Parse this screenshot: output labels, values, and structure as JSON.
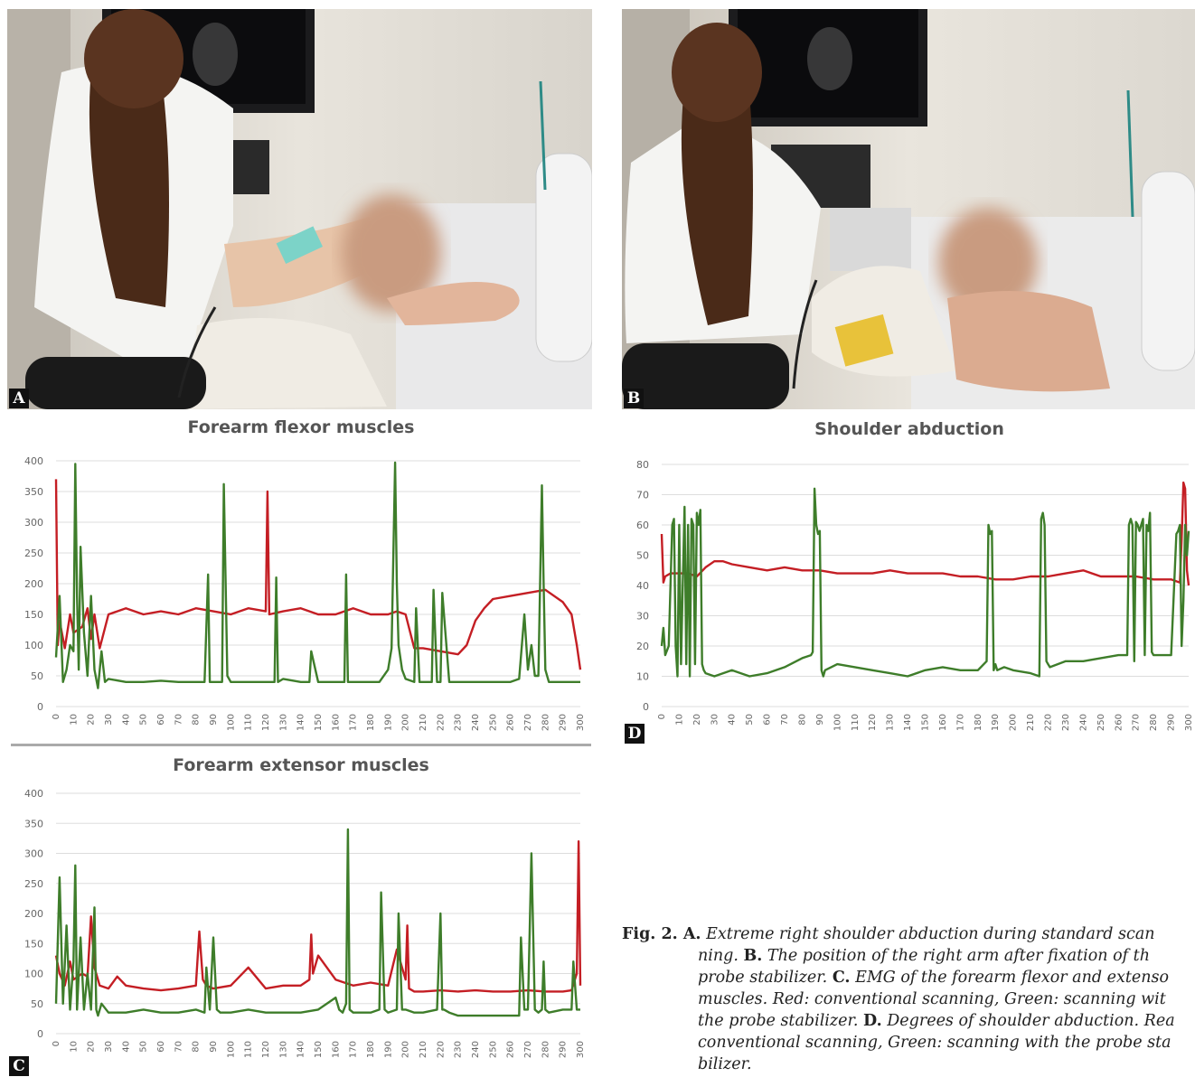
{
  "panels": {
    "a": {
      "letter": "A"
    },
    "b": {
      "letter": "B"
    },
    "c": {
      "letter": "C"
    },
    "d": {
      "letter": "D"
    }
  },
  "colors": {
    "conventional": "#c41e24",
    "stabilizer": "#3e7d2a"
  },
  "chart_data": [
    {
      "id": "flexor",
      "type": "line",
      "title": "Forearm flexor muscles",
      "ylim": [
        0,
        400
      ],
      "yticks": [
        0,
        50,
        100,
        150,
        200,
        250,
        300,
        350,
        400
      ],
      "xlim": [
        0,
        300
      ],
      "xticks": [
        0,
        10,
        20,
        30,
        40,
        50,
        60,
        70,
        80,
        90,
        100,
        110,
        120,
        130,
        140,
        150,
        160,
        170,
        180,
        190,
        200,
        210,
        220,
        230,
        240,
        250,
        260,
        270,
        280,
        290,
        300
      ],
      "grid": true,
      "series": [
        {
          "key": "conventional",
          "x": [
            0,
            1,
            2,
            5,
            8,
            10,
            15,
            18,
            20,
            22,
            25,
            30,
            35,
            40,
            50,
            60,
            70,
            80,
            90,
            100,
            110,
            120,
            121,
            122,
            130,
            140,
            150,
            160,
            170,
            180,
            190,
            195,
            200,
            205,
            210,
            220,
            230,
            235,
            240,
            245,
            250,
            260,
            270,
            280,
            290,
            295,
            298,
            300
          ],
          "y": [
            370,
            100,
            140,
            95,
            150,
            120,
            130,
            160,
            110,
            150,
            95,
            150,
            155,
            160,
            150,
            155,
            150,
            160,
            155,
            150,
            160,
            155,
            350,
            150,
            155,
            160,
            150,
            150,
            160,
            150,
            150,
            155,
            150,
            95,
            95,
            90,
            85,
            100,
            140,
            160,
            175,
            180,
            185,
            190,
            170,
            150,
            100,
            60
          ]
        },
        {
          "key": "stabilizer",
          "x": [
            0,
            2,
            4,
            6,
            8,
            10,
            11,
            12,
            13,
            14,
            16,
            18,
            20,
            22,
            24,
            26,
            28,
            30,
            40,
            50,
            60,
            70,
            80,
            85,
            87,
            88,
            89,
            90,
            95,
            96,
            97,
            98,
            100,
            110,
            115,
            120,
            125,
            126,
            127,
            130,
            140,
            145,
            146,
            150,
            160,
            165,
            166,
            167,
            170,
            180,
            185,
            190,
            192,
            194,
            195,
            196,
            198,
            200,
            205,
            206,
            208,
            210,
            215,
            216,
            218,
            220,
            221,
            225,
            230,
            240,
            250,
            260,
            265,
            268,
            270,
            272,
            274,
            276,
            278,
            279,
            280,
            282,
            284,
            290,
            295,
            298,
            299,
            300
          ],
          "y": [
            80,
            180,
            40,
            60,
            100,
            90,
            395,
            180,
            60,
            260,
            120,
            50,
            180,
            60,
            30,
            90,
            40,
            45,
            40,
            40,
            42,
            40,
            40,
            40,
            215,
            40,
            40,
            40,
            40,
            362,
            210,
            50,
            40,
            40,
            40,
            40,
            40,
            210,
            40,
            45,
            40,
            40,
            90,
            40,
            40,
            40,
            215,
            40,
            40,
            40,
            40,
            60,
            95,
            397,
            200,
            100,
            60,
            45,
            40,
            160,
            40,
            40,
            40,
            190,
            40,
            40,
            185,
            40,
            40,
            40,
            40,
            40,
            45,
            150,
            60,
            100,
            50,
            50,
            360,
            200,
            60,
            40,
            40,
            40,
            40,
            40,
            40,
            40
          ]
        }
      ]
    },
    {
      "id": "extensor",
      "type": "line",
      "title": "Forearm extensor muscles",
      "ylim": [
        0,
        400
      ],
      "yticks": [
        0,
        50,
        100,
        150,
        200,
        250,
        300,
        350,
        400
      ],
      "xlim": [
        0,
        300
      ],
      "xticks": [
        0,
        10,
        20,
        30,
        40,
        50,
        60,
        70,
        80,
        90,
        100,
        110,
        120,
        130,
        140,
        150,
        160,
        170,
        180,
        190,
        200,
        210,
        220,
        230,
        240,
        250,
        260,
        270,
        280,
        290,
        300
      ],
      "grid": true,
      "series": [
        {
          "key": "conventional",
          "x": [
            0,
            2,
            5,
            8,
            10,
            15,
            18,
            20,
            22,
            25,
            30,
            35,
            40,
            50,
            60,
            70,
            80,
            82,
            84,
            86,
            90,
            100,
            110,
            120,
            130,
            140,
            145,
            146,
            147,
            150,
            160,
            170,
            180,
            190,
            195,
            200,
            201,
            202,
            205,
            210,
            220,
            230,
            240,
            250,
            260,
            270,
            280,
            290,
            295,
            298,
            299,
            300
          ],
          "y": [
            130,
            100,
            80,
            120,
            90,
            100,
            95,
            195,
            110,
            80,
            75,
            95,
            80,
            75,
            72,
            75,
            80,
            170,
            90,
            80,
            75,
            80,
            110,
            75,
            80,
            80,
            90,
            165,
            100,
            130,
            90,
            80,
            85,
            80,
            140,
            90,
            180,
            75,
            70,
            70,
            72,
            70,
            72,
            70,
            70,
            72,
            70,
            70,
            72,
            100,
            320,
            80
          ]
        },
        {
          "key": "stabilizer",
          "x": [
            0,
            2,
            4,
            6,
            8,
            10,
            11,
            12,
            14,
            16,
            18,
            20,
            22,
            23,
            24,
            26,
            30,
            40,
            50,
            60,
            70,
            80,
            85,
            86,
            88,
            90,
            92,
            94,
            95,
            100,
            110,
            120,
            130,
            140,
            150,
            155,
            160,
            162,
            164,
            166,
            167,
            168,
            170,
            180,
            185,
            186,
            188,
            190,
            195,
            196,
            198,
            200,
            205,
            210,
            218,
            220,
            221,
            222,
            225,
            230,
            240,
            250,
            260,
            265,
            266,
            268,
            270,
            272,
            274,
            276,
            278,
            279,
            280,
            282,
            290,
            295,
            296,
            298,
            300
          ],
          "y": [
            50,
            260,
            50,
            180,
            40,
            120,
            280,
            40,
            160,
            40,
            100,
            40,
            210,
            40,
            30,
            50,
            35,
            35,
            40,
            35,
            35,
            40,
            35,
            110,
            40,
            160,
            40,
            35,
            35,
            35,
            40,
            35,
            35,
            35,
            40,
            50,
            60,
            40,
            35,
            50,
            340,
            40,
            35,
            35,
            40,
            235,
            40,
            35,
            40,
            200,
            40,
            40,
            35,
            35,
            40,
            200,
            40,
            40,
            35,
            30,
            30,
            30,
            30,
            30,
            160,
            40,
            40,
            300,
            40,
            35,
            40,
            120,
            40,
            35,
            40,
            40,
            120,
            40,
            40
          ]
        }
      ]
    },
    {
      "id": "shoulder",
      "type": "line",
      "title": "Shoulder abduction",
      "ylim": [
        0,
        80
      ],
      "yticks": [
        0,
        10,
        20,
        30,
        40,
        50,
        60,
        70,
        80
      ],
      "xlim": [
        0,
        300
      ],
      "xticks": [
        0,
        10,
        20,
        30,
        40,
        50,
        60,
        70,
        80,
        90,
        100,
        110,
        120,
        130,
        140,
        150,
        160,
        170,
        180,
        190,
        200,
        210,
        220,
        230,
        240,
        250,
        260,
        270,
        280,
        290,
        300
      ],
      "grid": true,
      "series": [
        {
          "key": "conventional",
          "x": [
            0,
            1,
            2,
            5,
            10,
            15,
            20,
            25,
            30,
            35,
            40,
            50,
            60,
            70,
            80,
            90,
            100,
            110,
            120,
            130,
            140,
            150,
            160,
            170,
            180,
            190,
            200,
            210,
            220,
            230,
            240,
            250,
            260,
            270,
            280,
            290,
            295,
            296,
            297,
            298,
            299,
            300
          ],
          "y": [
            57,
            41,
            43,
            44,
            44,
            44,
            43,
            46,
            48,
            48,
            47,
            46,
            45,
            46,
            45,
            45,
            44,
            44,
            44,
            45,
            44,
            44,
            44,
            43,
            43,
            42,
            42,
            43,
            43,
            44,
            45,
            43,
            43,
            43,
            42,
            42,
            41,
            55,
            74,
            72,
            45,
            40
          ]
        },
        {
          "key": "stabilizer",
          "x": [
            0,
            1,
            2,
            4,
            6,
            7,
            8,
            9,
            10,
            11,
            12,
            13,
            14,
            15,
            16,
            17,
            18,
            19,
            20,
            21,
            22,
            23,
            24,
            25,
            30,
            40,
            50,
            60,
            70,
            80,
            85,
            86,
            87,
            88,
            89,
            90,
            91,
            92,
            93,
            100,
            110,
            120,
            130,
            140,
            150,
            160,
            170,
            180,
            185,
            186,
            187,
            188,
            189,
            190,
            191,
            195,
            200,
            210,
            215,
            216,
            217,
            218,
            219,
            220,
            221,
            230,
            240,
            250,
            260,
            265,
            266,
            267,
            268,
            269,
            270,
            271,
            272,
            273,
            274,
            275,
            276,
            277,
            278,
            279,
            280,
            290,
            293,
            294,
            295,
            296,
            297,
            298,
            299,
            300
          ],
          "y": [
            20,
            26,
            17,
            20,
            60,
            62,
            20,
            10,
            60,
            14,
            40,
            66,
            14,
            60,
            10,
            62,
            60,
            14,
            64,
            60,
            65,
            14,
            12,
            11,
            10,
            12,
            10,
            11,
            13,
            16,
            17,
            18,
            72,
            60,
            57,
            58,
            12,
            10,
            12,
            14,
            13,
            12,
            11,
            10,
            12,
            13,
            12,
            12,
            15,
            60,
            57,
            58,
            12,
            14,
            12,
            13,
            12,
            11,
            10,
            62,
            64,
            60,
            15,
            14,
            13,
            15,
            15,
            16,
            17,
            17,
            60,
            62,
            60,
            15,
            61,
            60,
            58,
            60,
            62,
            17,
            60,
            58,
            64,
            18,
            17,
            17,
            57,
            58,
            60,
            20,
            35,
            60,
            50,
            58
          ]
        }
      ]
    }
  ],
  "caption": {
    "line1_lead": "Fig. 2. A.",
    "line1_text": " Extreme right shoulder abduction during standard scan",
    "line2_text": "ning. ",
    "line2_bold": "B.",
    "line2_rest": " The position of the right arm after fixation of th",
    "line3_text": "probe stabilizer. ",
    "line3_bold": "C.",
    "line3_rest": " EMG of the forearm flexor and extenso",
    "line4_text": "muscles. Red: conventional scanning, Green: scanning wit",
    "line5_text": "the probe stabilizer. ",
    "line5_bold": "D.",
    "line5_rest": " Degrees of shoulder abduction. Rea",
    "line6_text": "conventional scanning, Green: scanning with the probe sta",
    "line7_text": "bilizer."
  }
}
